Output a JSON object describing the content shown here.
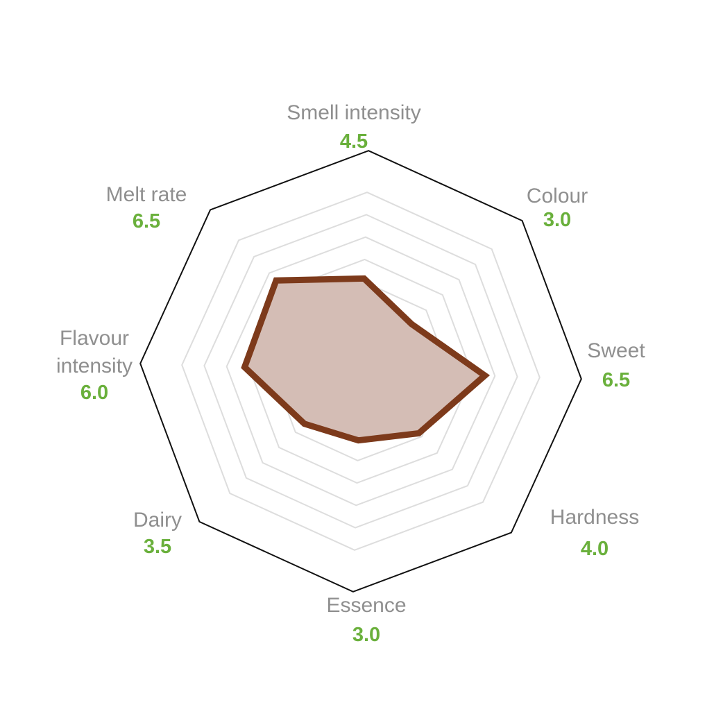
{
  "chart_data": {
    "type": "radar",
    "axes": [
      {
        "label_lines": [
          "Smell intensity"
        ],
        "value": 4.5,
        "value_text": "4.5"
      },
      {
        "label_lines": [
          "Colour"
        ],
        "value": 3.0,
        "value_text": "3.0"
      },
      {
        "label_lines": [
          "Sweet"
        ],
        "value": 6.5,
        "value_text": "6.5"
      },
      {
        "label_lines": [
          "Hardness"
        ],
        "value": 4.0,
        "value_text": "4.0"
      },
      {
        "label_lines": [
          "Essence"
        ],
        "value": 3.0,
        "value_text": "3.0"
      },
      {
        "label_lines": [
          "Dairy"
        ],
        "value": 3.5,
        "value_text": "3.5"
      },
      {
        "label_lines": [
          "Flavour",
          "intensity"
        ],
        "value": 6.0,
        "value_text": "6.0"
      },
      {
        "label_lines": [
          "Melt rate"
        ],
        "value": 6.5,
        "value_text": "6.5"
      }
    ],
    "range": [
      0,
      10
    ],
    "grid_rings": 8,
    "colors": {
      "series_stroke": "#7d3a1b",
      "series_fill": "#d4bdb5",
      "outer_frame": "#111111",
      "grid": "#dddddd",
      "label": "#8f8f8f",
      "value": "#6ab03c"
    }
  }
}
